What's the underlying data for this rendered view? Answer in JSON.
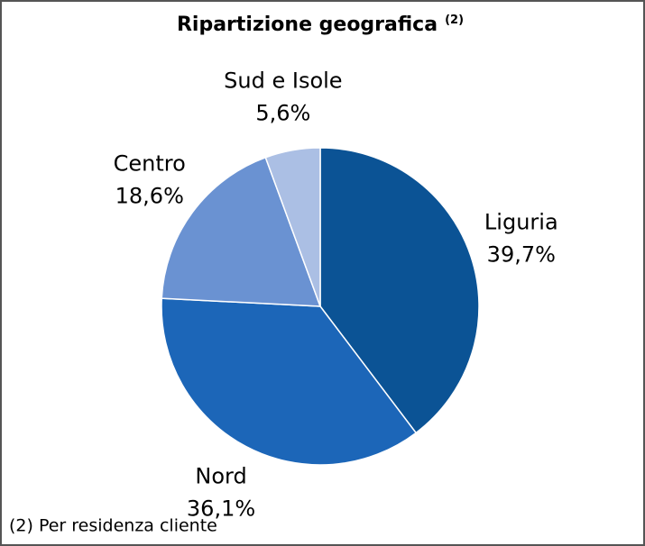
{
  "chart_data": {
    "type": "pie",
    "title": "Ripartizione geografica",
    "title_superscript": "(2)",
    "categories": [
      "Liguria",
      "Nord",
      "Centro",
      "Sud e Isole"
    ],
    "values": [
      39.7,
      36.1,
      18.6,
      5.6
    ],
    "value_labels": [
      "39,7%",
      "36,1%",
      "18,6%",
      "5,6%"
    ],
    "colors": [
      "#0b5395",
      "#1c66b8",
      "#6a92d2",
      "#abbfe4"
    ],
    "footnote": "(2) Per residenza cliente"
  }
}
